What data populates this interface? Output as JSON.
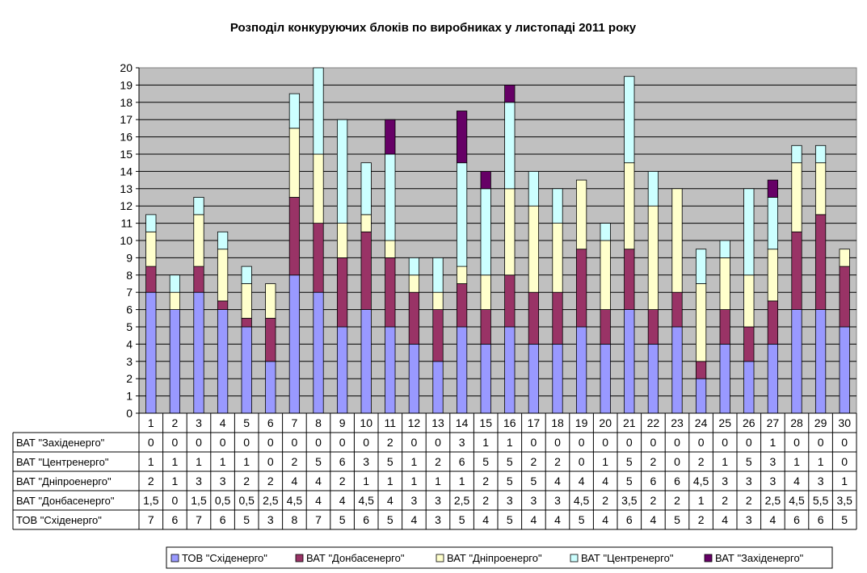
{
  "chart_data": {
    "type": "bar",
    "stacked": true,
    "title": "Розподіл конкуруючих блоків по виробниках у листопаді 2011 року",
    "xlabel": "",
    "ylabel": "",
    "ylim": [
      0,
      20
    ],
    "yticks": [
      0,
      1,
      2,
      3,
      4,
      5,
      6,
      7,
      8,
      9,
      10,
      11,
      12,
      13,
      14,
      15,
      16,
      17,
      18,
      19,
      20
    ],
    "grid": true,
    "legend_position": "bottom",
    "categories": [
      "1",
      "2",
      "3",
      "4",
      "5",
      "6",
      "7",
      "8",
      "9",
      "10",
      "11",
      "12",
      "13",
      "14",
      "15",
      "16",
      "17",
      "18",
      "19",
      "20",
      "21",
      "22",
      "23",
      "24",
      "25",
      "26",
      "27",
      "28",
      "29",
      "30"
    ],
    "series": [
      {
        "name": "ТОВ \"Східенерго\"",
        "color": "#9999ff",
        "values": [
          7,
          6,
          7,
          6,
          5,
          3,
          8,
          7,
          5,
          6,
          5,
          4,
          3,
          5,
          4,
          5,
          4,
          4,
          5,
          4,
          6,
          4,
          5,
          2,
          4,
          3,
          4,
          6,
          6,
          5
        ],
        "labels": [
          "7",
          "6",
          "7",
          "6",
          "5",
          "3",
          "8",
          "7",
          "5",
          "6",
          "5",
          "4",
          "3",
          "5",
          "4",
          "5",
          "4",
          "4",
          "5",
          "4",
          "6",
          "4",
          "5",
          "2",
          "4",
          "3",
          "4",
          "6",
          "6",
          "5"
        ]
      },
      {
        "name": "ВАТ \"Донбасенерго\"",
        "color": "#993366",
        "values": [
          1.5,
          0,
          1.5,
          0.5,
          0.5,
          2.5,
          4.5,
          4,
          4,
          4.5,
          4,
          3,
          3,
          2.5,
          2,
          3,
          3,
          3,
          4.5,
          2,
          3.5,
          2,
          2,
          1,
          2,
          2,
          2.5,
          4.5,
          5.5,
          3.5
        ],
        "labels": [
          "1,5",
          "0",
          "1,5",
          "0,5",
          "0,5",
          "2,5",
          "4,5",
          "4",
          "4",
          "4,5",
          "4",
          "3",
          "3",
          "2,5",
          "2",
          "3",
          "3",
          "3",
          "4,5",
          "2",
          "3,5",
          "2",
          "2",
          "1",
          "2",
          "2",
          "2,5",
          "4,5",
          "5,5",
          "3,5"
        ]
      },
      {
        "name": "ВАТ \"Дніпроенерго\"",
        "color": "#ffffcc",
        "values": [
          2,
          1,
          3,
          3,
          2,
          2,
          4,
          4,
          2,
          1,
          1,
          1,
          1,
          1,
          2,
          5,
          5,
          4,
          4,
          4,
          5,
          6,
          6,
          4.5,
          3,
          3,
          3,
          4,
          3,
          1
        ],
        "labels": [
          "2",
          "1",
          "3",
          "3",
          "2",
          "2",
          "4",
          "4",
          "2",
          "1",
          "1",
          "1",
          "1",
          "1",
          "2",
          "5",
          "5",
          "4",
          "4",
          "4",
          "5",
          "6",
          "6",
          "4,5",
          "3",
          "3",
          "3",
          "4",
          "3",
          "1"
        ]
      },
      {
        "name": "ВАТ \"Центренерго\"",
        "color": "#ccffff",
        "values": [
          1,
          1,
          1,
          1,
          1,
          0,
          2,
          5,
          6,
          3,
          5,
          1,
          2,
          6,
          5,
          5,
          2,
          2,
          0,
          1,
          5,
          2,
          0,
          2,
          1,
          5,
          3,
          1,
          1,
          0
        ],
        "labels": [
          "1",
          "1",
          "1",
          "1",
          "1",
          "0",
          "2",
          "5",
          "6",
          "3",
          "5",
          "1",
          "2",
          "6",
          "5",
          "5",
          "2",
          "2",
          "0",
          "1",
          "5",
          "2",
          "0",
          "2",
          "1",
          "5",
          "3",
          "1",
          "1",
          "0"
        ]
      },
      {
        "name": "ВАТ \"Західенерго\"",
        "color": "#660066",
        "values": [
          0,
          0,
          0,
          0,
          0,
          0,
          0,
          0,
          0,
          0,
          2,
          0,
          0,
          3,
          1,
          1,
          0,
          0,
          0,
          0,
          0,
          0,
          0,
          0,
          0,
          0,
          1,
          0,
          0,
          0
        ],
        "labels": [
          "0",
          "0",
          "0",
          "0",
          "0",
          "0",
          "0",
          "0",
          "0",
          "0",
          "2",
          "0",
          "0",
          "3",
          "1",
          "1",
          "0",
          "0",
          "0",
          "0",
          "0",
          "0",
          "0",
          "0",
          "0",
          "0",
          "1",
          "0",
          "0",
          "0"
        ]
      }
    ],
    "table_row_order": [
      4,
      3,
      2,
      1,
      0
    ]
  }
}
